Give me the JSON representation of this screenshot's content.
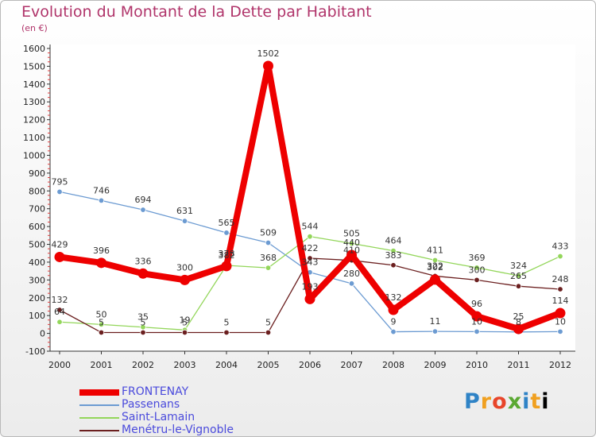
{
  "header": {
    "title": "Evolution du Montant de la Dette par Habitant",
    "subtitle": "(en €)"
  },
  "logo": {
    "text": "Proxiti"
  },
  "chart_data": {
    "type": "line",
    "title": "Evolution du Montant de la Dette par Habitant",
    "subtitle": "(en €)",
    "x": [
      "2000",
      "2001",
      "2002",
      "2003",
      "2004",
      "2005",
      "2006",
      "2007",
      "2008",
      "2009",
      "2010",
      "2011",
      "2012"
    ],
    "ylim": [
      -100,
      1600
    ],
    "yticks": [
      -100,
      0,
      100,
      200,
      300,
      400,
      500,
      600,
      700,
      800,
      900,
      1000,
      1100,
      1200,
      1300,
      1400,
      1500,
      1600
    ],
    "grid": false,
    "legend_position": "bottom-left",
    "series": [
      {
        "name": "FRONTENAY",
        "color": "#ee0000",
        "width": 8,
        "values": [
          429,
          396,
          336,
          300,
          378,
          1502,
          193,
          440,
          132,
          302,
          96,
          25,
          114
        ],
        "labels": [
          "429",
          "396",
          "336",
          "300",
          "378",
          "1502",
          "193",
          "440",
          "132",
          "302",
          "96",
          "25",
          "114"
        ]
      },
      {
        "name": "Passenans",
        "color": "#6c9bd2",
        "width": 1.3,
        "values": [
          795,
          746,
          694,
          631,
          565,
          509,
          343,
          280,
          9,
          11,
          10,
          8,
          10
        ],
        "labels": [
          "795",
          "746",
          "694",
          "631",
          "565",
          "509",
          "343",
          "280",
          "9",
          "11",
          "10",
          "8",
          "10"
        ]
      },
      {
        "name": "Saint-Lamain",
        "color": "#93d65a",
        "width": 1.3,
        "values": [
          64,
          50,
          35,
          19,
          382,
          368,
          544,
          505,
          464,
          411,
          369,
          324,
          433
        ],
        "labels": [
          "64",
          "50",
          "35",
          "19",
          "382",
          "368",
          "544",
          "505",
          "464",
          "411",
          "369",
          "324",
          "433"
        ]
      },
      {
        "name": "Menétru-le-Vignoble",
        "color": "#6b1f1f",
        "width": 1.3,
        "values": [
          132,
          5,
          5,
          5,
          5,
          5,
          422,
          410,
          383,
          322,
          300,
          265,
          248
        ],
        "labels": [
          "132",
          "5",
          "5",
          "5",
          "5",
          "5",
          "422",
          "410",
          "383",
          "322",
          "300",
          "265",
          "248"
        ]
      }
    ]
  }
}
